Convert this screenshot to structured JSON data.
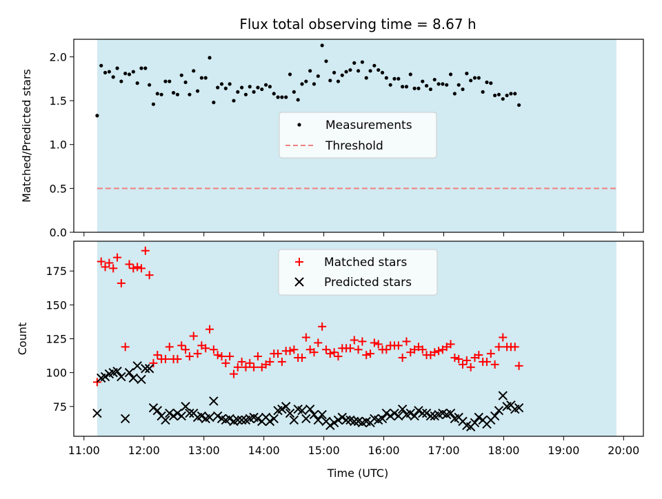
{
  "title": "Flux total observing time = 8.67 h",
  "colors": {
    "band": "#add8e6",
    "measurement": "#000000",
    "threshold": "#f08080",
    "matched": "#ff0000",
    "predicted": "#000000"
  },
  "chart_data": [
    {
      "type": "scatter",
      "ylabel": "Matched/Predicted stars",
      "xlabel": "",
      "ylim": [
        0,
        2.2
      ],
      "yticks": [
        0.0,
        0.5,
        1.0,
        1.5,
        2.0
      ],
      "ytick_labels": [
        "0.0",
        "0.5",
        "1.0",
        "1.5",
        "2.0"
      ],
      "xlim_hours": [
        10.83,
        20.33
      ],
      "shaded_band_hours": [
        11.22,
        19.88
      ],
      "legend": {
        "placement": "center",
        "entries": [
          "Measurements",
          "Threshold"
        ]
      },
      "threshold": {
        "name": "Threshold",
        "y": 0.5
      },
      "series": [
        {
          "name": "Measurements",
          "x_start_hours": 11.22,
          "x_step_hours": 0.067,
          "values": [
            1.33,
            1.9,
            1.82,
            1.83,
            1.77,
            1.87,
            1.72,
            1.81,
            1.8,
            1.83,
            1.7,
            1.87,
            1.87,
            1.68,
            1.46,
            1.58,
            1.57,
            1.72,
            1.72,
            1.59,
            1.57,
            1.79,
            1.71,
            1.57,
            1.84,
            1.61,
            1.76,
            1.76,
            1.99,
            1.48,
            1.65,
            1.69,
            1.64,
            1.69,
            1.5,
            1.6,
            1.65,
            1.57,
            1.66,
            1.6,
            1.65,
            1.63,
            1.68,
            1.66,
            1.58,
            1.54,
            1.54,
            1.54,
            1.8,
            1.6,
            1.51,
            1.69,
            1.72,
            1.84,
            1.69,
            1.78,
            2.13,
            1.95,
            1.73,
            1.82,
            1.72,
            1.79,
            1.83,
            1.85,
            1.93,
            1.84,
            1.94,
            1.76,
            1.84,
            1.9,
            1.85,
            1.82,
            1.76,
            1.68,
            1.75,
            1.75,
            1.66,
            1.66,
            1.8,
            1.64,
            1.64,
            1.72,
            1.67,
            1.63,
            1.74,
            1.69,
            1.69,
            1.68,
            1.8,
            1.58,
            1.68,
            1.63,
            1.81,
            1.73,
            1.76,
            1.76,
            1.6,
            1.71,
            1.7,
            1.56,
            1.57,
            1.52,
            1.56,
            1.58,
            1.58,
            1.45
          ]
        }
      ]
    },
    {
      "type": "scatter",
      "ylabel": "Count",
      "xlabel": "Time (UTC)",
      "ylim": [
        53,
        197
      ],
      "yticks": [
        75,
        100,
        125,
        150,
        175
      ],
      "ytick_labels": [
        "75",
        "100",
        "125",
        "150",
        "175"
      ],
      "xlim_hours": [
        10.83,
        20.33
      ],
      "xticks_hours": [
        11,
        12,
        13,
        14,
        15,
        16,
        17,
        18,
        19,
        20
      ],
      "xtick_labels": [
        "11:00",
        "12:00",
        "13:00",
        "14:00",
        "15:00",
        "16:00",
        "17:00",
        "18:00",
        "19:00",
        "20:00"
      ],
      "shaded_band_hours": [
        11.22,
        19.88
      ],
      "legend": {
        "placement": "top-center",
        "entries": [
          "Matched stars",
          "Predicted stars"
        ]
      },
      "series": [
        {
          "name": "Matched stars",
          "x_start_hours": 11.22,
          "x_step_hours": 0.067,
          "values": [
            93,
            182,
            178,
            181,
            177,
            185,
            166,
            119,
            180,
            177,
            178,
            177,
            190,
            172,
            107,
            113,
            110,
            110,
            119,
            110,
            110,
            120,
            117,
            112,
            127,
            114,
            120,
            118,
            132,
            117,
            113,
            112,
            107,
            112,
            99,
            104,
            108,
            104,
            107,
            104,
            112,
            104,
            106,
            108,
            114,
            114,
            108,
            116,
            116,
            117,
            111,
            111,
            126,
            117,
            115,
            122,
            134,
            117,
            114,
            115,
            112,
            118,
            118,
            118,
            124,
            117,
            123,
            113,
            114,
            122,
            121,
            117,
            117,
            120,
            120,
            120,
            111,
            123,
            115,
            117,
            119,
            117,
            113,
            113,
            115,
            116,
            117,
            119,
            121,
            111,
            110,
            106,
            109,
            104,
            111,
            113,
            108,
            108,
            114,
            106,
            119,
            126,
            119,
            119,
            119,
            105
          ]
        },
        {
          "name": "Predicted stars",
          "x_start_hours": 11.22,
          "x_step_hours": 0.067,
          "values": [
            70,
            96,
            97,
            99,
            100,
            101,
            97,
            66,
            100,
            96,
            105,
            95,
            103,
            103,
            74,
            72,
            68,
            65,
            70,
            68,
            70,
            68,
            75,
            70,
            70,
            67,
            68,
            66,
            67,
            79,
            68,
            66,
            65,
            66,
            64,
            65,
            65,
            65,
            66,
            67,
            66,
            64,
            67,
            64,
            66,
            72,
            73,
            75,
            70,
            65,
            73,
            72,
            66,
            73,
            69,
            65,
            69,
            64,
            61,
            63,
            65,
            67,
            65,
            65,
            64,
            64,
            63,
            64,
            63,
            66,
            65,
            66,
            70,
            68,
            70,
            68,
            73,
            69,
            70,
            68,
            72,
            70,
            70,
            68,
            68,
            69,
            70,
            69,
            70,
            66,
            67,
            64,
            61,
            60,
            63,
            67,
            65,
            62,
            65,
            68,
            72,
            83,
            75,
            76,
            73,
            74
          ]
        }
      ]
    }
  ]
}
